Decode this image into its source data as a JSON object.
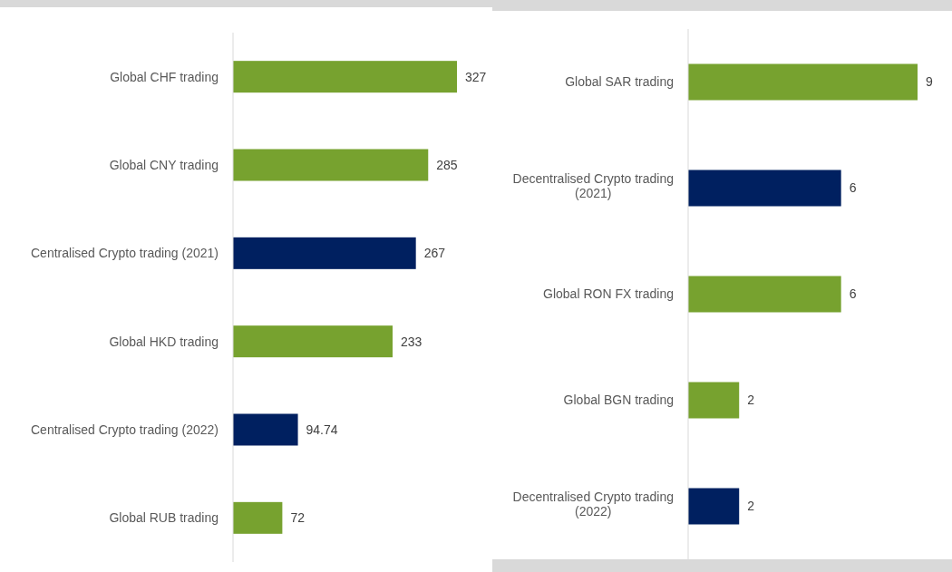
{
  "chart_data": [
    {
      "type": "bar",
      "orientation": "horizontal",
      "categories": [
        "Global CHF trading",
        "Global CNY trading",
        "Centralised Crypto trading (2021)",
        "Global HKD trading",
        "Centralised Crypto trading (2022)",
        "Global RUB trading"
      ],
      "values": [
        327,
        285,
        267,
        233,
        94.74,
        72
      ],
      "colors": [
        "#77a22f",
        "#77a22f",
        "#002060",
        "#77a22f",
        "#002060",
        "#77a22f"
      ],
      "data_labels": true
    },
    {
      "type": "bar",
      "orientation": "horizontal",
      "categories": [
        "Global SAR trading",
        "Decentralised Crypto trading (2021)",
        "Global RON FX trading",
        "Global BGN trading",
        "Decentralised Crypto trading (2022)"
      ],
      "values": [
        9,
        6,
        6,
        2,
        2
      ],
      "colors": [
        "#77a22f",
        "#002060",
        "#77a22f",
        "#77a22f",
        "#002060"
      ],
      "data_labels": true
    }
  ]
}
